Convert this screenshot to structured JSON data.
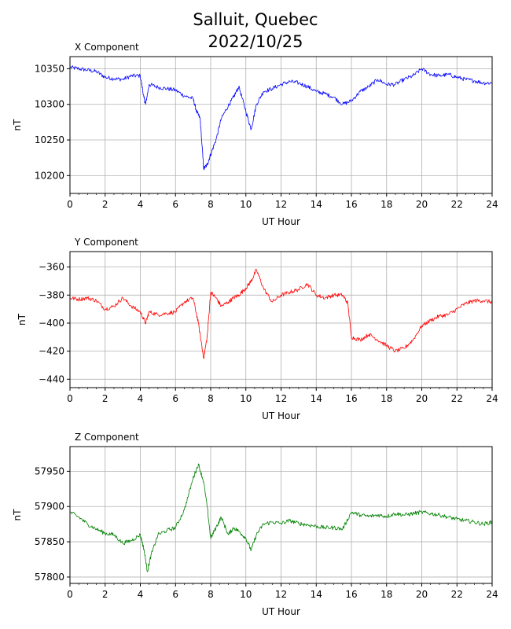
{
  "figure": {
    "title_line1": "Salluit, Quebec",
    "title_line2": "2022/10/25"
  },
  "chart_data": [
    {
      "type": "line",
      "title": "X Component",
      "xlabel": "UT Hour",
      "ylabel": "nT",
      "color": "#0000ff",
      "xlim": [
        0,
        24
      ],
      "ylim": [
        10175,
        10367
      ],
      "xticks": [
        0,
        2,
        4,
        6,
        8,
        10,
        12,
        14,
        16,
        18,
        20,
        22,
        24
      ],
      "yticks": [
        10200,
        10250,
        10300,
        10350
      ],
      "grid": true,
      "series": [
        {
          "x": [
            0,
            0.5,
            1,
            1.5,
            2,
            2.5,
            3,
            3.5,
            4,
            4.2,
            4.3,
            4.5,
            5,
            5.5,
            6,
            6.5,
            7,
            7.2,
            7.4,
            7.6,
            7.8,
            8,
            8.3,
            8.6,
            9,
            9.3,
            9.6,
            10,
            10.3,
            10.6,
            11,
            11.5,
            12,
            12.5,
            13,
            13.5,
            14,
            14.5,
            15,
            15.5,
            16,
            16.5,
            17,
            17.5,
            18,
            18.5,
            19,
            19.5,
            20,
            20.5,
            21,
            21.5,
            22,
            22.5,
            23,
            23.5,
            24
          ],
          "y": [
            10352,
            10350,
            10348,
            10346,
            10338,
            10336,
            10335,
            10340,
            10340,
            10310,
            10300,
            10328,
            10324,
            10322,
            10320,
            10312,
            10308,
            10290,
            10280,
            10210,
            10215,
            10230,
            10250,
            10280,
            10298,
            10310,
            10325,
            10290,
            10265,
            10300,
            10318,
            10322,
            10328,
            10332,
            10330,
            10325,
            10318,
            10315,
            10310,
            10300,
            10305,
            10318,
            10325,
            10335,
            10328,
            10328,
            10335,
            10340,
            10350,
            10342,
            10340,
            10342,
            10338,
            10335,
            10333,
            10330,
            10330
          ]
        }
      ]
    },
    {
      "type": "line",
      "title": "Y Component",
      "xlabel": "UT Hour",
      "ylabel": "nT",
      "color": "#ff0000",
      "xlim": [
        0,
        24
      ],
      "ylim": [
        -446,
        -349
      ],
      "xticks": [
        0,
        2,
        4,
        6,
        8,
        10,
        12,
        14,
        16,
        18,
        20,
        22,
        24
      ],
      "yticks": [
        -440,
        -420,
        -400,
        -380,
        -360
      ],
      "grid": true,
      "series": [
        {
          "x": [
            0,
            0.5,
            1,
            1.5,
            2,
            2.5,
            3,
            3.5,
            4,
            4.3,
            4.5,
            5,
            5.5,
            6,
            6.5,
            7,
            7.3,
            7.6,
            7.8,
            8,
            8.3,
            8.6,
            9,
            9.3,
            9.6,
            10,
            10.3,
            10.6,
            11,
            11.5,
            12,
            12.5,
            13,
            13.5,
            14,
            14.5,
            15,
            15.5,
            15.8,
            16,
            16.5,
            17,
            17.5,
            18,
            18.5,
            19,
            19.5,
            20,
            20.5,
            21,
            21.5,
            22,
            22.5,
            23,
            23.5,
            24
          ],
          "y": [
            -382,
            -383,
            -382,
            -384,
            -390,
            -388,
            -382,
            -388,
            -392,
            -400,
            -392,
            -394,
            -393,
            -392,
            -385,
            -382,
            -400,
            -425,
            -410,
            -378,
            -382,
            -388,
            -385,
            -382,
            -380,
            -375,
            -370,
            -362,
            -375,
            -385,
            -380,
            -378,
            -376,
            -372,
            -380,
            -382,
            -380,
            -380,
            -386,
            -410,
            -412,
            -408,
            -412,
            -416,
            -420,
            -418,
            -412,
            -402,
            -398,
            -395,
            -394,
            -390,
            -386,
            -384,
            -384,
            -385
          ]
        }
      ]
    },
    {
      "type": "line",
      "title": "Z Component",
      "xlabel": "UT Hour",
      "ylabel": "nT",
      "color": "#008000",
      "xlim": [
        0,
        24
      ],
      "ylim": [
        57791,
        57985
      ],
      "xticks": [
        0,
        2,
        4,
        6,
        8,
        10,
        12,
        14,
        16,
        18,
        20,
        22,
        24
      ],
      "yticks": [
        57800,
        57850,
        57900,
        57950
      ],
      "grid": true,
      "series": [
        {
          "x": [
            0,
            0.5,
            1,
            1.5,
            2,
            2.5,
            3,
            3.5,
            4,
            4.2,
            4.4,
            4.6,
            5,
            5.5,
            6,
            6.5,
            7,
            7.3,
            7.6,
            7.8,
            8,
            8.3,
            8.6,
            9,
            9.3,
            9.6,
            10,
            10.3,
            10.6,
            11,
            11.5,
            12,
            12.5,
            13,
            13.5,
            14,
            14.5,
            15,
            15.5,
            16,
            16.5,
            17,
            17.5,
            18,
            18.5,
            19,
            19.5,
            20,
            20.5,
            21,
            21.5,
            22,
            22.5,
            23,
            23.5,
            24
          ],
          "y": [
            57892,
            57885,
            57875,
            57868,
            57862,
            57860,
            57848,
            57852,
            57860,
            57840,
            57808,
            57830,
            57860,
            57866,
            57870,
            57895,
            57940,
            57960,
            57935,
            57900,
            57855,
            57870,
            57885,
            57860,
            57870,
            57865,
            57855,
            57838,
            57860,
            57875,
            57878,
            57876,
            57880,
            57876,
            57874,
            57872,
            57870,
            57870,
            57868,
            57892,
            57888,
            57886,
            57888,
            57886,
            57890,
            57888,
            57890,
            57892,
            57890,
            57888,
            57885,
            57882,
            57880,
            57878,
            57875,
            57878
          ]
        }
      ]
    }
  ]
}
